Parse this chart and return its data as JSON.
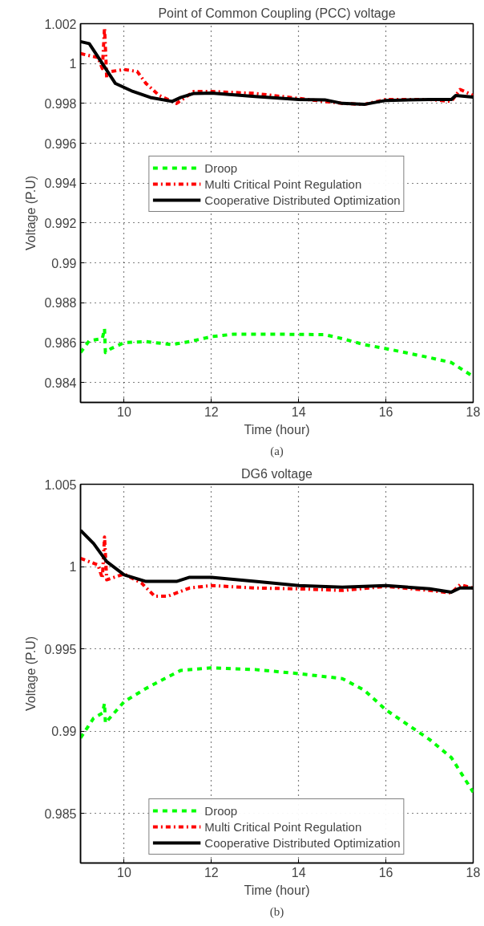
{
  "chart_data": [
    {
      "type": "line",
      "title": "Point of Common Coupling (PCC) voltage",
      "xlabel": "Time (hour)",
      "ylabel": "Voltage (P.U)",
      "annotations": [
        "(a)"
      ],
      "xlim": [
        9,
        18
      ],
      "xticks": [
        10,
        12,
        14,
        16,
        18
      ],
      "ylim": [
        0.983,
        1.002
      ],
      "yticks": [
        {
          "value": 0.984,
          "label": "0.984"
        },
        {
          "value": 0.986,
          "label": "0.986"
        },
        {
          "value": 0.988,
          "label": "0.988"
        },
        {
          "value": 0.99,
          "label": "0.99"
        },
        {
          "value": 0.992,
          "label": "0.992"
        },
        {
          "value": 0.994,
          "label": "0.994"
        },
        {
          "value": 0.996,
          "label": "0.996"
        },
        {
          "value": 0.998,
          "label": "0.998"
        },
        {
          "value": 1,
          "label": "1"
        },
        {
          "value": 1.002,
          "label": "1.002"
        }
      ],
      "grid": true,
      "legend": "top",
      "series": [
        {
          "name": "Droop",
          "color": "#00ff00",
          "line_style": "dashed",
          "x": [
            9,
            9.2,
            9.5,
            9.55,
            9.57,
            9.7,
            10,
            10.5,
            11.1,
            11.5,
            12,
            12.5,
            13.5,
            14.6,
            15,
            15.5,
            16,
            17,
            17.5,
            18
          ],
          "values": [
            0.9855,
            0.9861,
            0.9862,
            0.9867,
            0.9855,
            0.9857,
            0.986,
            0.98605,
            0.9859,
            0.98605,
            0.9863,
            0.98642,
            0.98642,
            0.9864,
            0.9862,
            0.9859,
            0.9857,
            0.98525,
            0.985,
            0.9843
          ]
        },
        {
          "name": "Multi Critical Point Regulation",
          "color": "#ff0000",
          "line_style": "dashdot",
          "x": [
            9,
            9.4,
            9.5,
            9.55,
            9.6,
            9.7,
            10,
            10.3,
            10.5,
            10.8,
            11.2,
            11.6,
            12,
            13,
            14,
            15,
            15.5,
            16,
            17,
            17.5,
            17.7,
            18
          ],
          "values": [
            1.0005,
            1.0003,
            0.99975,
            1.0018,
            0.9993,
            0.9996,
            0.9997,
            0.9996,
            0.999,
            0.9984,
            0.998,
            0.9986,
            0.9986,
            0.9985,
            0.99825,
            0.998,
            0.99795,
            0.9982,
            0.9982,
            0.9981,
            0.9987,
            0.9984
          ]
        },
        {
          "name": "Cooperative Distributed Optimization",
          "color": "#000000",
          "line_style": "solid",
          "x": [
            9,
            9.2,
            9.5,
            9.8,
            10.2,
            10.6,
            11.1,
            11.3,
            11.6,
            12,
            13,
            14,
            14.6,
            15,
            15.5,
            16,
            17,
            17.5,
            17.6,
            18
          ],
          "values": [
            1.0011,
            1.001,
            1.0,
            0.999,
            0.9986,
            0.9983,
            0.9981,
            0.9983,
            0.9985,
            0.99852,
            0.99835,
            0.9982,
            0.99818,
            0.998,
            0.99795,
            0.99815,
            0.9982,
            0.9982,
            0.9984,
            0.99832
          ]
        }
      ]
    },
    {
      "type": "line",
      "title": "DG6 voltage",
      "xlabel": "Time (hour)",
      "ylabel": "Voltage (P.U)",
      "annotations": [
        "(b)"
      ],
      "xlim": [
        9,
        18
      ],
      "xticks": [
        10,
        12,
        14,
        16,
        18
      ],
      "ylim": [
        0.982,
        1.005
      ],
      "yticks": [
        {
          "value": 0.985,
          "label": "0.985"
        },
        {
          "value": 0.99,
          "label": "0.99"
        },
        {
          "value": 0.995,
          "label": "0.995"
        },
        {
          "value": 1,
          "label": "1"
        },
        {
          "value": 1.005,
          "label": "1.005"
        }
      ],
      "grid": true,
      "legend": "bottom",
      "series": [
        {
          "name": "Droop",
          "color": "#00ff00",
          "line_style": "dashed",
          "x": [
            9,
            9.3,
            9.5,
            9.55,
            9.57,
            10,
            10.5,
            11,
            11.3,
            12,
            13,
            14,
            15,
            15.5,
            16,
            17,
            17.5,
            18
          ],
          "values": [
            0.9896,
            0.9908,
            0.9911,
            0.9917,
            0.9905,
            0.9918,
            0.9926,
            0.9933,
            0.9937,
            0.99385,
            0.99375,
            0.9935,
            0.9932,
            0.9925,
            0.9913,
            0.9895,
            0.9884,
            0.9863
          ]
        },
        {
          "name": "Multi Critical Point Regulation",
          "color": "#ff0000",
          "line_style": "dashdot",
          "x": [
            9,
            9.4,
            9.5,
            9.55,
            9.6,
            10,
            10.4,
            10.7,
            11,
            11.5,
            12,
            13,
            14,
            15,
            16,
            17,
            17.5,
            17.7,
            18
          ],
          "values": [
            1.0005,
            1.0001,
            0.9993,
            1.0018,
            0.9992,
            0.99955,
            0.999,
            0.9982,
            0.9982,
            0.9987,
            0.99885,
            0.9987,
            0.99865,
            0.99855,
            0.9988,
            0.99855,
            0.9984,
            0.9989,
            0.9987
          ]
        },
        {
          "name": "Cooperative Distributed Optimization",
          "color": "#000000",
          "line_style": "solid",
          "x": [
            9,
            9.3,
            9.6,
            10,
            10.5,
            11.2,
            11.5,
            12,
            13,
            14,
            15,
            16,
            17,
            17.5,
            17.7,
            18
          ],
          "values": [
            1.0022,
            1.0014,
            1.0003,
            0.9995,
            0.9991,
            0.9991,
            0.99935,
            0.99935,
            0.9991,
            0.99885,
            0.99875,
            0.99885,
            0.99865,
            0.99845,
            0.9987,
            0.9987
          ]
        }
      ]
    }
  ]
}
